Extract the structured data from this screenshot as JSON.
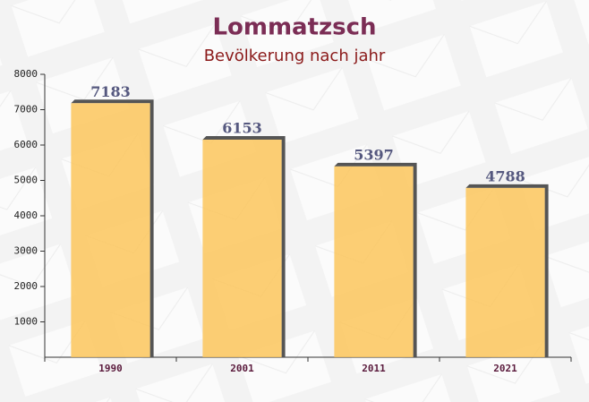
{
  "chart_data": {
    "type": "bar",
    "title": "Lommatzsch",
    "subtitle": "Bevölkerung nach jahr",
    "categories": [
      "1990",
      "2001",
      "2011",
      "2021"
    ],
    "values": [
      7183,
      6153,
      5397,
      4788
    ],
    "color": "#fbc55c",
    "ylim": [
      0,
      8000
    ],
    "yticks": [
      1000,
      2000,
      3000,
      4000,
      5000,
      6000,
      7000,
      8000
    ],
    "grid": false
  }
}
